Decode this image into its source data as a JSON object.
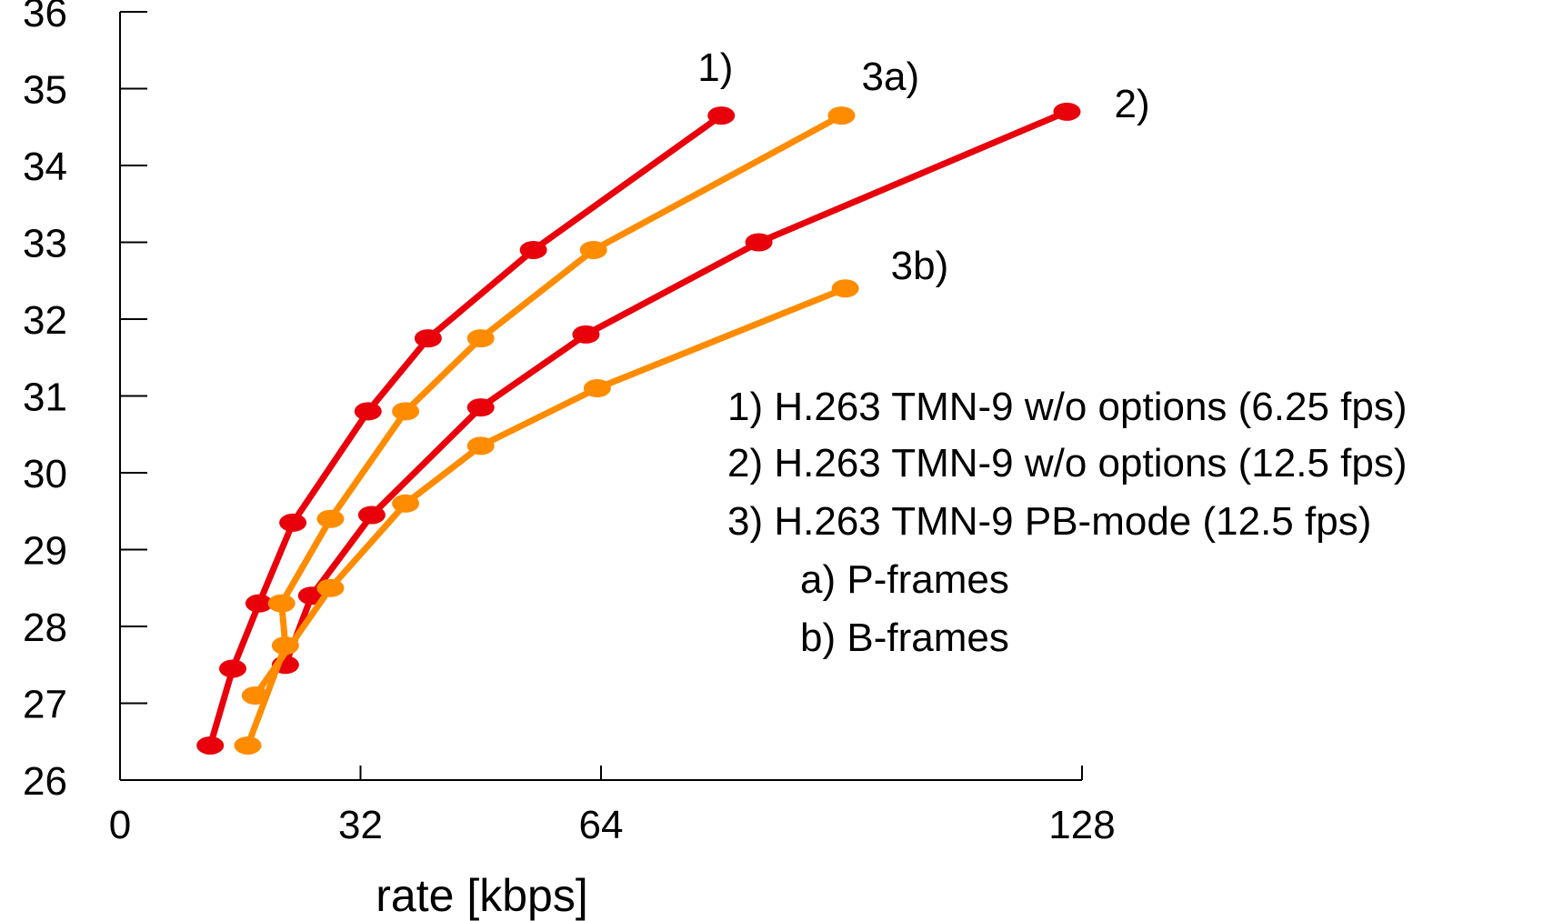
{
  "chart_data": {
    "type": "line",
    "title": "",
    "xlabel": "rate [kbps]",
    "ylabel": "",
    "xlim": [
      0,
      128
    ],
    "ylim": [
      26,
      36
    ],
    "x_ticks": [
      0,
      32,
      64,
      128
    ],
    "x_tick_labels": [
      "0",
      "32",
      "64",
      "128"
    ],
    "y_ticks": [
      26,
      27,
      28,
      29,
      30,
      31,
      32,
      33,
      34,
      35,
      36
    ],
    "y_tick_labels": [
      "26",
      "27",
      "28",
      "29",
      "30",
      "31",
      "32",
      "33",
      "34",
      "35",
      "36"
    ],
    "grid": false,
    "colors": {
      "red": "#e8000b",
      "orange": "#ff8c00"
    },
    "series": [
      {
        "label": "1)",
        "color": "#e8000b",
        "x": [
          12,
          15,
          18.5,
          23,
          33,
          41,
          55,
          80
        ],
        "y": [
          26.45,
          27.45,
          28.3,
          29.35,
          30.8,
          31.75,
          32.9,
          34.65
        ]
      },
      {
        "label": "2)",
        "color": "#e8000b",
        "x": [
          22,
          25.5,
          33.5,
          48,
          62,
          85,
          126
        ],
        "y": [
          27.5,
          28.4,
          29.45,
          30.85,
          31.8,
          33.0,
          34.7
        ]
      },
      {
        "label": "3a)",
        "color": "#ff8c00",
        "x": [
          17,
          22,
          21.5,
          28,
          38,
          48,
          63,
          96
        ],
        "y": [
          26.45,
          27.75,
          28.3,
          29.4,
          30.8,
          31.75,
          32.9,
          34.65
        ]
      },
      {
        "label": "3b)",
        "color": "#ff8c00",
        "x": [
          18,
          28,
          38,
          48,
          63.5,
          96.5
        ],
        "y": [
          27.1,
          28.5,
          29.6,
          30.35,
          31.1,
          32.4
        ]
      }
    ],
    "legend": {
      "placement": "right",
      "lines": [
        "1) H.263 TMN-9 w/o options (6.25 fps)",
        "2) H.263 TMN-9 w/o options (12.5 fps)",
        "3) H.263 TMN-9 PB-mode (12.5 fps)",
        "a) P-frames",
        "b) B-frames"
      ]
    }
  }
}
